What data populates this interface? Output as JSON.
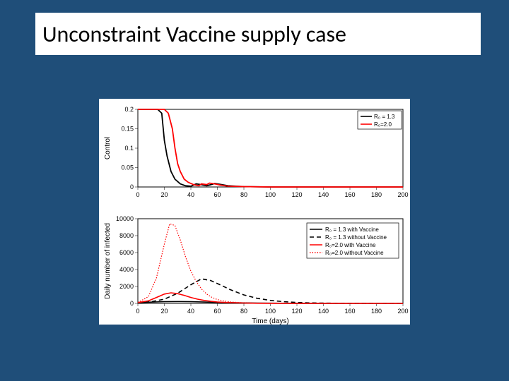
{
  "slide": {
    "background_color": "#1f4e79",
    "title": "Unconstraint Vaccine supply case",
    "title_fontsize": 32,
    "title_bg": "#ffffff",
    "title_color": "#000000"
  },
  "chart_top": {
    "type": "line",
    "xlim": [
      0,
      200
    ],
    "ylim": [
      0,
      0.2
    ],
    "xticks": [
      0,
      20,
      40,
      60,
      80,
      100,
      120,
      140,
      160,
      180,
      200
    ],
    "yticks": [
      0,
      0.05,
      0.1,
      0.15,
      0.2
    ],
    "ylabel": "Control",
    "background_color": "#ffffff",
    "axis_color": "#000000",
    "series": [
      {
        "name": "R0 = 1.3",
        "label": "R₀ = 1.3",
        "color": "#000000",
        "line_width": 1.8,
        "dash": "none",
        "data": [
          [
            0,
            0.2
          ],
          [
            10,
            0.2
          ],
          [
            15,
            0.2
          ],
          [
            18,
            0.19
          ],
          [
            20,
            0.12
          ],
          [
            22,
            0.08
          ],
          [
            25,
            0.04
          ],
          [
            28,
            0.02
          ],
          [
            32,
            0.008
          ],
          [
            36,
            0.003
          ],
          [
            40,
            0.002
          ],
          [
            44,
            0.008
          ],
          [
            48,
            0.006
          ],
          [
            52,
            0.003
          ],
          [
            56,
            0.007
          ],
          [
            58,
            0.009
          ],
          [
            62,
            0.007
          ],
          [
            68,
            0.003
          ],
          [
            80,
            0.001
          ],
          [
            100,
            0
          ],
          [
            200,
            0
          ]
        ]
      },
      {
        "name": "R0 = 2.0",
        "label": "R₀ = 2.0",
        "color": "#ff0000",
        "line_width": 1.8,
        "dash": "none",
        "data": [
          [
            0,
            0.2
          ],
          [
            15,
            0.2
          ],
          [
            20,
            0.2
          ],
          [
            23,
            0.19
          ],
          [
            26,
            0.15
          ],
          [
            28,
            0.1
          ],
          [
            30,
            0.06
          ],
          [
            32,
            0.04
          ],
          [
            35,
            0.02
          ],
          [
            38,
            0.012
          ],
          [
            42,
            0.006
          ],
          [
            46,
            0.003
          ],
          [
            48,
            0.008
          ],
          [
            52,
            0.006
          ],
          [
            54,
            0.01
          ],
          [
            58,
            0.008
          ],
          [
            62,
            0.005
          ],
          [
            68,
            0.002
          ],
          [
            80,
            0.001
          ],
          [
            100,
            0
          ],
          [
            200,
            0
          ]
        ]
      }
    ],
    "legend": {
      "position": "top-right",
      "items": [
        {
          "label": "R₀ = 1.3",
          "color": "#000000",
          "dash": "none"
        },
        {
          "label": "R₀=2.0",
          "color": "#ff0000",
          "dash": "none"
        }
      ]
    }
  },
  "chart_bottom": {
    "type": "line",
    "xlim": [
      0,
      200
    ],
    "ylim": [
      0,
      10000
    ],
    "xticks": [
      0,
      20,
      40,
      60,
      80,
      100,
      120,
      140,
      160,
      180,
      200
    ],
    "yticks": [
      0,
      2000,
      4000,
      6000,
      8000,
      10000
    ],
    "xlabel": "Time (days)",
    "ylabel": "Daily number of infected",
    "background_color": "#ffffff",
    "axis_color": "#000000",
    "series": [
      {
        "name": "R0=1.3 with Vaccine",
        "label": "R₀ = 1.3 with Vaccine",
        "color": "#000000",
        "line_width": 1.6,
        "dash": "none",
        "data": [
          [
            0,
            100
          ],
          [
            10,
            150
          ],
          [
            20,
            200
          ],
          [
            30,
            220
          ],
          [
            40,
            200
          ],
          [
            50,
            160
          ],
          [
            60,
            120
          ],
          [
            70,
            90
          ],
          [
            80,
            60
          ],
          [
            90,
            40
          ],
          [
            100,
            25
          ],
          [
            120,
            10
          ],
          [
            140,
            5
          ],
          [
            160,
            2
          ],
          [
            180,
            1
          ],
          [
            200,
            0
          ]
        ]
      },
      {
        "name": "R0=1.3 without Vaccine",
        "label": "R₀ = 1.3 without Vaccine",
        "color": "#000000",
        "line_width": 1.6,
        "dash": "6,4",
        "data": [
          [
            0,
            100
          ],
          [
            10,
            200
          ],
          [
            20,
            500
          ],
          [
            30,
            1200
          ],
          [
            40,
            2200
          ],
          [
            48,
            2900
          ],
          [
            55,
            2700
          ],
          [
            62,
            2200
          ],
          [
            70,
            1600
          ],
          [
            80,
            1000
          ],
          [
            90,
            600
          ],
          [
            100,
            350
          ],
          [
            110,
            200
          ],
          [
            120,
            110
          ],
          [
            130,
            60
          ],
          [
            140,
            35
          ],
          [
            150,
            20
          ],
          [
            160,
            12
          ],
          [
            170,
            7
          ],
          [
            180,
            4
          ],
          [
            190,
            2
          ],
          [
            200,
            1
          ]
        ]
      },
      {
        "name": "R0=2.0 with Vaccine",
        "label": "R₀=2.0 with Vaccine",
        "color": "#ff0000",
        "line_width": 1.6,
        "dash": "none",
        "data": [
          [
            0,
            100
          ],
          [
            8,
            300
          ],
          [
            14,
            700
          ],
          [
            20,
            1100
          ],
          [
            25,
            1250
          ],
          [
            30,
            1150
          ],
          [
            35,
            950
          ],
          [
            40,
            700
          ],
          [
            45,
            500
          ],
          [
            50,
            350
          ],
          [
            55,
            250
          ],
          [
            60,
            170
          ],
          [
            65,
            120
          ],
          [
            70,
            80
          ],
          [
            80,
            40
          ],
          [
            90,
            20
          ],
          [
            100,
            10
          ],
          [
            120,
            3
          ],
          [
            140,
            1
          ],
          [
            160,
            0
          ],
          [
            180,
            0
          ],
          [
            200,
            0
          ]
        ]
      },
      {
        "name": "R0=2.0 without Vaccine",
        "label": "R₀=2.0 without Vaccine",
        "color": "#ff0000",
        "line_width": 1.2,
        "dash": "1.5,2",
        "data": [
          [
            0,
            100
          ],
          [
            8,
            800
          ],
          [
            14,
            3000
          ],
          [
            20,
            7000
          ],
          [
            24,
            9400
          ],
          [
            28,
            9200
          ],
          [
            32,
            7500
          ],
          [
            36,
            5500
          ],
          [
            40,
            3800
          ],
          [
            44,
            2600
          ],
          [
            48,
            1700
          ],
          [
            52,
            1100
          ],
          [
            56,
            700
          ],
          [
            60,
            450
          ],
          [
            65,
            280
          ],
          [
            70,
            170
          ],
          [
            80,
            70
          ],
          [
            90,
            30
          ],
          [
            100,
            12
          ],
          [
            120,
            3
          ],
          [
            140,
            1
          ],
          [
            160,
            0
          ],
          [
            180,
            0
          ],
          [
            200,
            0
          ]
        ]
      }
    ],
    "legend": {
      "position": "right-mid",
      "items": [
        {
          "label": "R₀ = 1.3 with Vaccine",
          "color": "#000000",
          "dash": "none"
        },
        {
          "label": "R₀ = 1.3 without Vaccine",
          "color": "#000000",
          "dash": "6,4"
        },
        {
          "label": "R₀=2.0 with Vaccine",
          "color": "#ff0000",
          "dash": "none"
        },
        {
          "label": "R₀=2.0 without Vaccine",
          "color": "#ff0000",
          "dash": "1.5,2"
        }
      ]
    }
  }
}
